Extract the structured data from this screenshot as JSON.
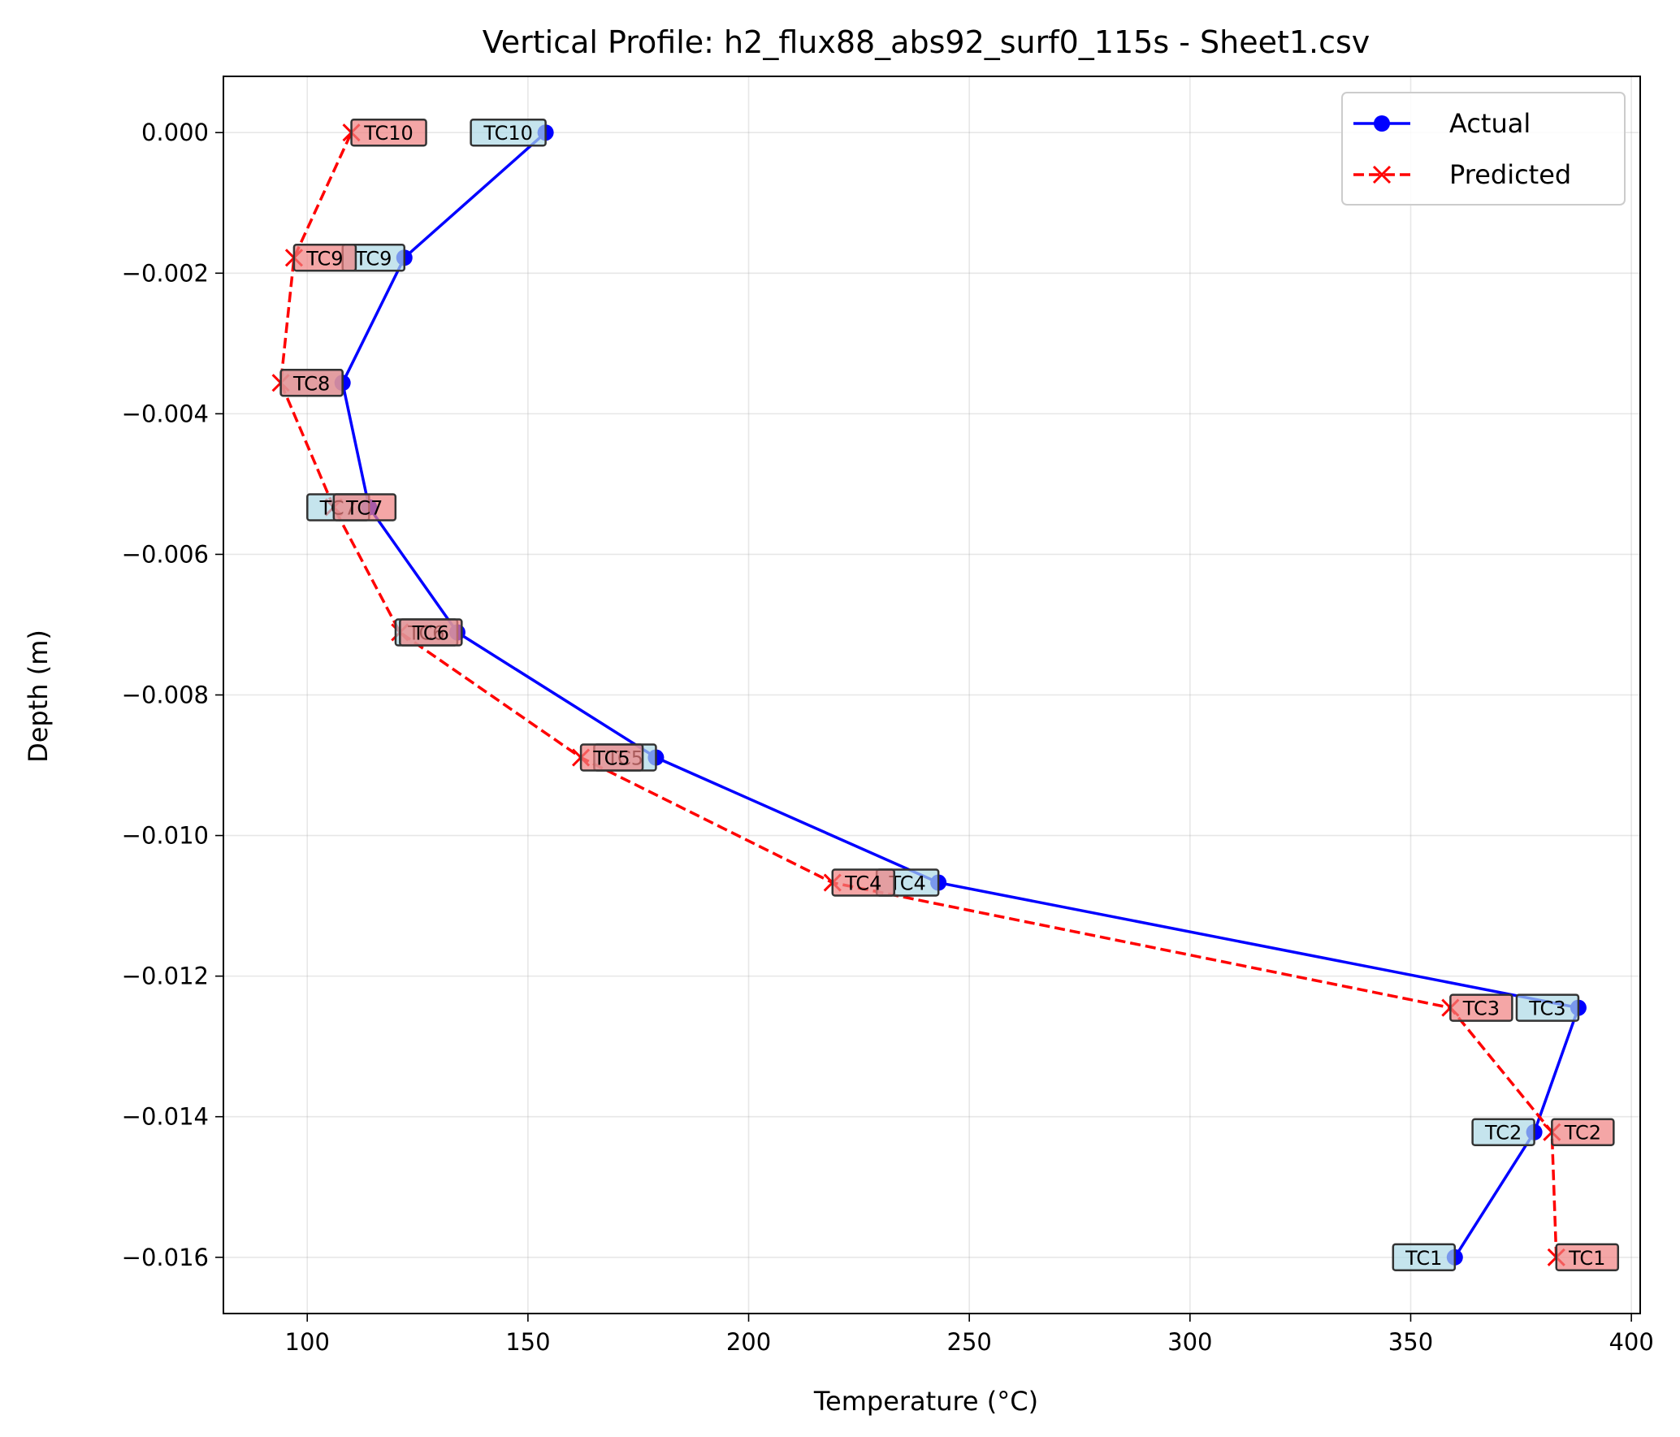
{
  "chart_data": {
    "type": "line",
    "title": "Vertical Profile: h2_flux88_abs92_surf0_115s - Sheet1.csv",
    "xlabel": "Temperature (°C)",
    "ylabel": "Depth (m)",
    "xlim": [
      81,
      402
    ],
    "ylim": [
      -0.0168,
      0.0008
    ],
    "xticks": [
      100,
      150,
      200,
      250,
      300,
      350,
      400
    ],
    "xtick_labels": [
      "100",
      "150",
      "200",
      "250",
      "300",
      "350",
      "400"
    ],
    "yticks": [
      0.0,
      -0.002,
      -0.004,
      -0.006,
      -0.008,
      -0.01,
      -0.012,
      -0.014,
      -0.016
    ],
    "ytick_labels": [
      "0.000",
      "−0.002",
      "−0.004",
      "−0.006",
      "−0.008",
      "−0.010",
      "−0.012",
      "−0.014",
      "−0.016"
    ],
    "grid": true,
    "legend_position": "top-right",
    "series": [
      {
        "name": "Actual",
        "color": "#0000ff",
        "label_bg": "#add8e6",
        "line_style": "solid",
        "marker": "circle",
        "points": [
          {
            "label": "TC1",
            "x": 360,
            "y": -0.016
          },
          {
            "label": "TC2",
            "x": 378,
            "y": -0.01422
          },
          {
            "label": "TC3",
            "x": 388,
            "y": -0.01245
          },
          {
            "label": "TC4",
            "x": 243,
            "y": -0.01067
          },
          {
            "label": "TC5",
            "x": 179,
            "y": -0.00889
          },
          {
            "label": "TC6",
            "x": 134,
            "y": -0.00711
          },
          {
            "label": "TC7",
            "x": 114,
            "y": -0.00533
          },
          {
            "label": "TC8",
            "x": 108,
            "y": -0.00356
          },
          {
            "label": "TC9",
            "x": 122,
            "y": -0.00178
          },
          {
            "label": "TC10",
            "x": 154,
            "y": 0.0
          }
        ]
      },
      {
        "name": "Predicted",
        "color": "#ff0000",
        "label_bg": "#f08080",
        "line_style": "dashed",
        "marker": "x",
        "points": [
          {
            "label": "TC1",
            "x": 383,
            "y": -0.016
          },
          {
            "label": "TC2",
            "x": 382,
            "y": -0.01422
          },
          {
            "label": "TC3",
            "x": 359,
            "y": -0.01245
          },
          {
            "label": "TC4",
            "x": 219,
            "y": -0.01067
          },
          {
            "label": "TC5",
            "x": 162,
            "y": -0.00889
          },
          {
            "label": "TC6",
            "x": 121,
            "y": -0.00711
          },
          {
            "label": "TC7",
            "x": 106,
            "y": -0.00533
          },
          {
            "label": "TC8",
            "x": 94,
            "y": -0.00356
          },
          {
            "label": "TC9",
            "x": 97,
            "y": -0.00178
          },
          {
            "label": "TC10",
            "x": 110,
            "y": 0.0
          }
        ]
      }
    ]
  }
}
